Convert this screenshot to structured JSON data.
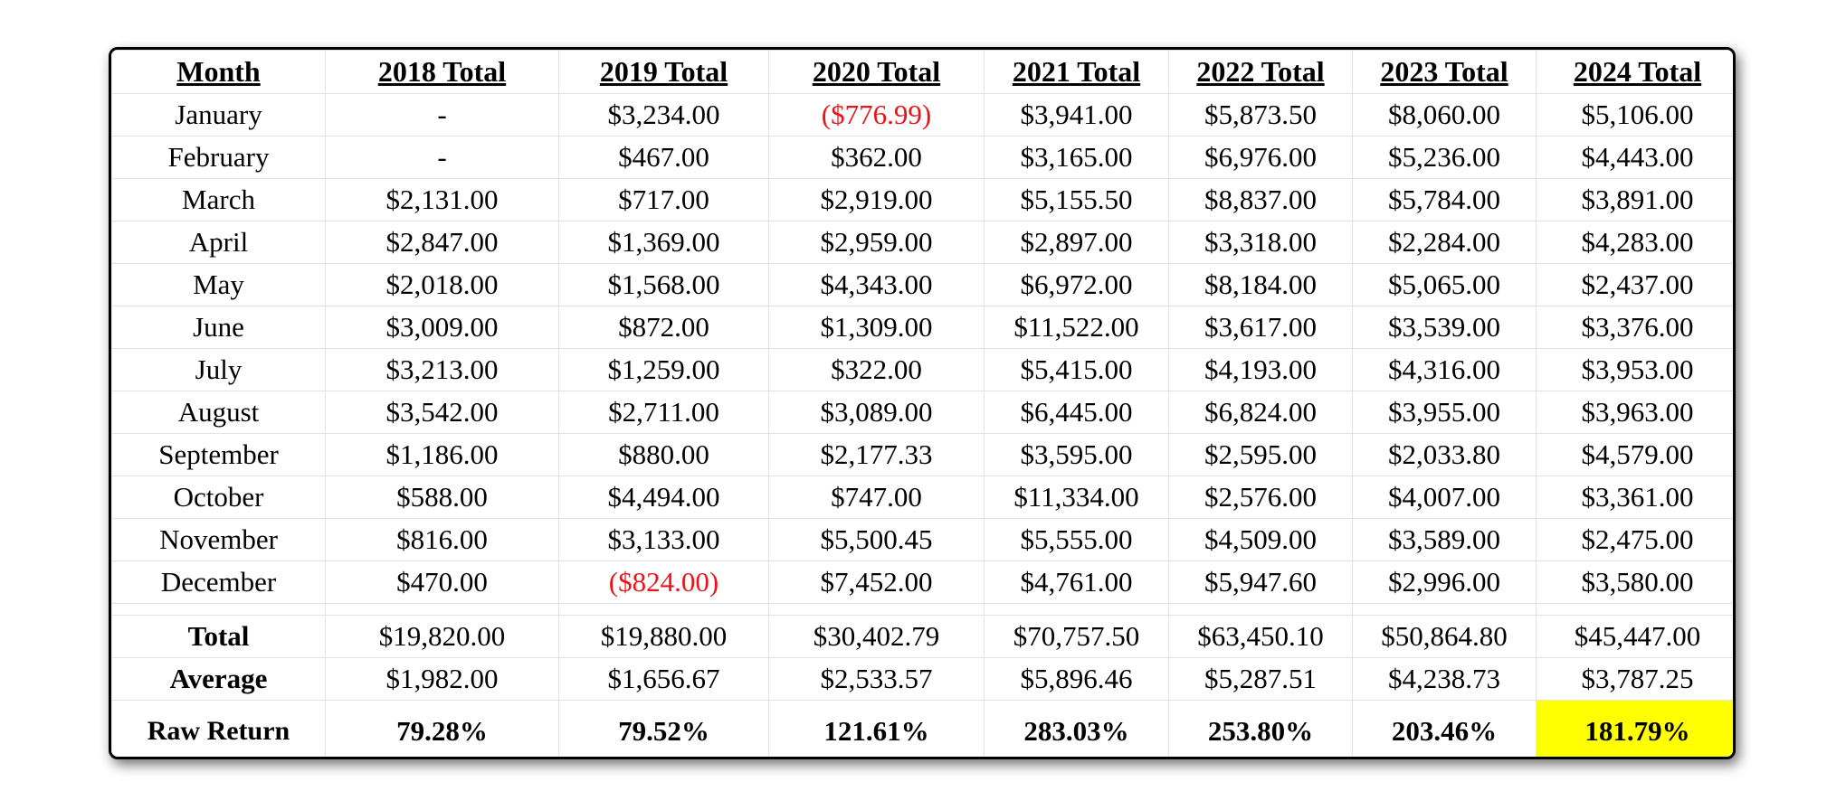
{
  "table": {
    "headers": [
      "Month",
      "2018 Total",
      "2019 Total",
      "2020 Total",
      "2021 Total",
      "2022 Total",
      "2023 Total",
      "2024 Total"
    ],
    "rows": [
      {
        "month": "January",
        "values": [
          "-",
          "$3,234.00",
          "($776.99)",
          "$3,941.00",
          "$5,873.50",
          "$8,060.00",
          "$5,106.00"
        ]
      },
      {
        "month": "February",
        "values": [
          "-",
          "$467.00",
          "$362.00",
          "$3,165.00",
          "$6,976.00",
          "$5,236.00",
          "$4,443.00"
        ]
      },
      {
        "month": "March",
        "values": [
          "$2,131.00",
          "$717.00",
          "$2,919.00",
          "$5,155.50",
          "$8,837.00",
          "$5,784.00",
          "$3,891.00"
        ]
      },
      {
        "month": "April",
        "values": [
          "$2,847.00",
          "$1,369.00",
          "$2,959.00",
          "$2,897.00",
          "$3,318.00",
          "$2,284.00",
          "$4,283.00"
        ]
      },
      {
        "month": "May",
        "values": [
          "$2,018.00",
          "$1,568.00",
          "$4,343.00",
          "$6,972.00",
          "$8,184.00",
          "$5,065.00",
          "$2,437.00"
        ]
      },
      {
        "month": "June",
        "values": [
          "$3,009.00",
          "$872.00",
          "$1,309.00",
          "$11,522.00",
          "$3,617.00",
          "$3,539.00",
          "$3,376.00"
        ]
      },
      {
        "month": "July",
        "values": [
          "$3,213.00",
          "$1,259.00",
          "$322.00",
          "$5,415.00",
          "$4,193.00",
          "$4,316.00",
          "$3,953.00"
        ]
      },
      {
        "month": "August",
        "values": [
          "$3,542.00",
          "$2,711.00",
          "$3,089.00",
          "$6,445.00",
          "$6,824.00",
          "$3,955.00",
          "$3,963.00"
        ]
      },
      {
        "month": "September",
        "values": [
          "$1,186.00",
          "$880.00",
          "$2,177.33",
          "$3,595.00",
          "$2,595.00",
          "$2,033.80",
          "$4,579.00"
        ]
      },
      {
        "month": "October",
        "values": [
          "$588.00",
          "$4,494.00",
          "$747.00",
          "$11,334.00",
          "$2,576.00",
          "$4,007.00",
          "$3,361.00"
        ]
      },
      {
        "month": "November",
        "values": [
          "$816.00",
          "$3,133.00",
          "$5,500.45",
          "$5,555.00",
          "$4,509.00",
          "$3,589.00",
          "$2,475.00"
        ]
      },
      {
        "month": "December",
        "values": [
          "$470.00",
          "($824.00)",
          "$7,452.00",
          "$4,761.00",
          "$5,947.60",
          "$2,996.00",
          "$3,580.00"
        ]
      }
    ],
    "total": {
      "label": "Total",
      "values": [
        "$19,820.00",
        "$19,880.00",
        "$30,402.79",
        "$70,757.50",
        "$63,450.10",
        "$50,864.80",
        "$45,447.00"
      ]
    },
    "average": {
      "label": "Average",
      "values": [
        "$1,982.00",
        "$1,656.67",
        "$2,533.57",
        "$5,896.46",
        "$5,287.51",
        "$4,238.73",
        "$3,787.25"
      ]
    },
    "raw_return": {
      "label": "Raw Return",
      "values": [
        "79.28%",
        "79.52%",
        "121.61%",
        "283.03%",
        "253.80%",
        "203.46%",
        "181.79%"
      ]
    }
  },
  "colors": {
    "negative_text": "#e8141a",
    "highlight_cell": "#ffff00"
  }
}
